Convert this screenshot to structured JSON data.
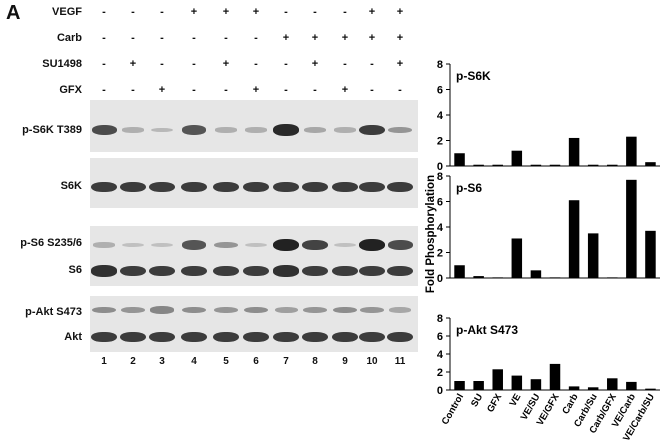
{
  "figure": {
    "panel_letter": "A",
    "conditions": [
      {
        "label": "VEGF",
        "signs": [
          "-",
          "-",
          "-",
          "+",
          "+",
          "+",
          "-",
          "-",
          "-",
          "+",
          "+"
        ]
      },
      {
        "label": "Carb",
        "signs": [
          "-",
          "-",
          "-",
          "-",
          "-",
          "-",
          "+",
          "+",
          "+",
          "+",
          "+"
        ]
      },
      {
        "label": "SU1498",
        "signs": [
          "-",
          "+",
          "-",
          "-",
          "+",
          "-",
          "-",
          "+",
          "-",
          "-",
          "+"
        ]
      },
      {
        "label": "GFX",
        "signs": [
          "-",
          "-",
          "+",
          "-",
          "-",
          "+",
          "-",
          "-",
          "+",
          "-",
          "-"
        ]
      }
    ],
    "blot_rows": [
      {
        "label": "p-S6K T389",
        "intensity": [
          0.75,
          0.15,
          0.1,
          0.7,
          0.15,
          0.15,
          0.95,
          0.2,
          0.15,
          0.85,
          0.3
        ]
      },
      {
        "label": "S6K",
        "intensity": [
          0.85,
          0.85,
          0.85,
          0.85,
          0.85,
          0.85,
          0.85,
          0.85,
          0.85,
          0.85,
          0.85
        ]
      },
      {
        "label": "p-S6 S235/6",
        "intensity": [
          0.15,
          0.05,
          0.05,
          0.7,
          0.3,
          0.05,
          1.0,
          0.8,
          0.05,
          1.0,
          0.75
        ]
      },
      {
        "label": "S6",
        "intensity": [
          0.9,
          0.85,
          0.85,
          0.85,
          0.85,
          0.85,
          0.9,
          0.85,
          0.85,
          0.85,
          0.85
        ]
      },
      {
        "label": "p-Akt S473",
        "intensity": [
          0.35,
          0.3,
          0.4,
          0.35,
          0.3,
          0.35,
          0.25,
          0.3,
          0.35,
          0.3,
          0.2
        ]
      },
      {
        "label": "Akt",
        "intensity": [
          0.85,
          0.85,
          0.85,
          0.85,
          0.85,
          0.85,
          0.85,
          0.85,
          0.85,
          0.85,
          0.85
        ]
      }
    ],
    "lane_numbers": [
      "1",
      "2",
      "3",
      "4",
      "5",
      "6",
      "7",
      "8",
      "9",
      "10",
      "11"
    ]
  },
  "chart_data": {
    "type": "bar",
    "ylabel": "Fold Phosphorylation",
    "categories": [
      "Control",
      "SU",
      "GFX",
      "VE",
      "VE/SU",
      "VE/GFX",
      "Carb",
      "Carb/Su",
      "Carb/GFX",
      "VE/Carb",
      "VE/Carb/SU"
    ],
    "panels": [
      {
        "title": "p-S6K",
        "ylim": [
          0,
          8
        ],
        "yticks": [
          "0",
          "2",
          "4",
          "6",
          "8"
        ],
        "values": [
          1.0,
          0.1,
          0.1,
          1.2,
          0.1,
          0.1,
          2.2,
          0.1,
          0.1,
          2.3,
          0.3
        ]
      },
      {
        "title": "p-S6",
        "ylim": [
          0,
          8
        ],
        "yticks": [
          "0",
          "2",
          "4",
          "6",
          "8"
        ],
        "values": [
          1.0,
          0.15,
          0.05,
          3.1,
          0.6,
          0.05,
          6.1,
          3.5,
          0.05,
          7.7,
          3.7
        ]
      },
      {
        "title": "p-Akt S473",
        "ylim": [
          0,
          8
        ],
        "yticks": [
          "0",
          "2",
          "4",
          "6",
          "8"
        ],
        "values": [
          1.0,
          1.0,
          2.3,
          1.6,
          1.2,
          2.9,
          0.4,
          0.3,
          1.3,
          0.9,
          0.15
        ]
      }
    ]
  }
}
